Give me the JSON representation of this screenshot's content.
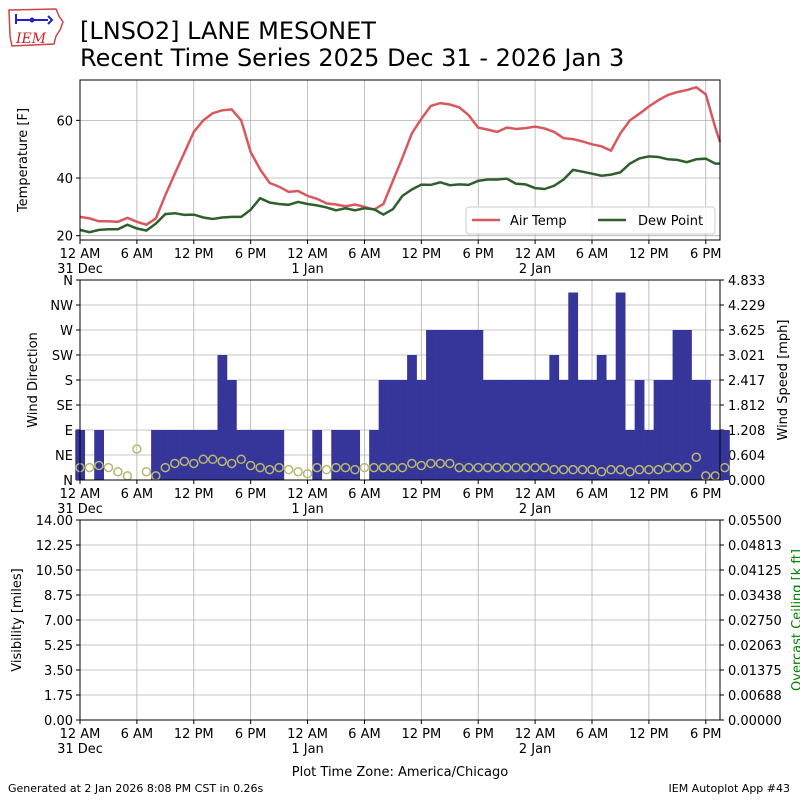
{
  "header": {
    "title_line1": "[LNSO2] LANE MESONET",
    "title_line2": "Recent Time Series 2025 Dec 31 - 2026 Jan 3",
    "logo_text": "IEM"
  },
  "footer": {
    "generated": "Generated at 2 Jan 2026 8:08 PM CST in 0.26s",
    "app": "IEM Autoplot App #43"
  },
  "colors": {
    "air_temp": "#d9585e",
    "dew_point": "#2f5f2f",
    "wind_bar": "#35359a",
    "speed_marker": "#b8b870",
    "ceiling_axis": "#008000"
  },
  "chart_data": [
    {
      "type": "line",
      "ylabel": "Temperature [F]",
      "ylim": [
        18.5,
        74
      ],
      "yticks": [
        20,
        40,
        60
      ],
      "xlim_hours": [
        0,
        67.5
      ],
      "grid": true,
      "legend": "lower right",
      "series": [
        {
          "name": "Air Temp",
          "x_hours": [
            0,
            1,
            2,
            3,
            4,
            5,
            6,
            7,
            8,
            9,
            10,
            11,
            12,
            13,
            14,
            15,
            16,
            17,
            18,
            19,
            20,
            21,
            22,
            23,
            24,
            25,
            26,
            27,
            28,
            29,
            30,
            31,
            32,
            33,
            34,
            35,
            36,
            37,
            38,
            39,
            40,
            41,
            42,
            43,
            44,
            45,
            46,
            47,
            48,
            49,
            50,
            51,
            52,
            53,
            54,
            55,
            56,
            57,
            58,
            59,
            60,
            61,
            62,
            63,
            64,
            65,
            66,
            67,
            67.5
          ],
          "values": [
            26.5,
            26,
            25,
            25,
            24.8,
            26.2,
            24.8,
            23.8,
            26,
            34,
            41.5,
            48.7,
            56,
            60,
            62.5,
            63.5,
            63.8,
            60,
            49,
            43,
            38.3,
            37,
            35.2,
            35.5,
            33.8,
            32.8,
            31.2,
            30.8,
            30.2,
            30.8,
            30,
            29,
            31,
            39,
            47,
            55.5,
            60.5,
            65,
            66,
            65.5,
            64.5,
            61.8,
            57.5,
            56.8,
            56,
            57.5,
            57,
            57.3,
            57.8,
            57.2,
            56,
            53.8,
            53.5,
            52.7,
            51.7,
            51,
            49.5,
            55.5,
            60,
            62.3,
            64.8,
            67,
            68.8,
            69.8,
            70.5,
            71.5,
            69,
            57.5,
            52.5
          ]
        },
        {
          "name": "Dew Point",
          "x_hours": [
            0,
            1,
            2,
            3,
            4,
            5,
            6,
            7,
            8,
            9,
            10,
            11,
            12,
            13,
            14,
            15,
            16,
            17,
            18,
            19,
            20,
            21,
            22,
            23,
            24,
            25,
            26,
            27,
            28,
            29,
            30,
            31,
            32,
            33,
            34,
            35,
            36,
            37,
            38,
            39,
            40,
            41,
            42,
            43,
            44,
            45,
            46,
            47,
            48,
            49,
            50,
            51,
            52,
            53,
            54,
            55,
            56,
            57,
            58,
            59,
            60,
            61,
            62,
            63,
            64,
            65,
            66,
            67,
            67.5
          ],
          "values": [
            22,
            21.2,
            22,
            22.2,
            22.2,
            23.8,
            22.5,
            21.8,
            24.2,
            27.5,
            27.8,
            27.2,
            27.3,
            26.3,
            25.8,
            26.3,
            26.5,
            26.5,
            29,
            33,
            31.5,
            31,
            30.7,
            31.7,
            31,
            30.5,
            29.8,
            28.8,
            29.5,
            28.8,
            29.5,
            29.2,
            27.3,
            29.2,
            33.8,
            36,
            37.7,
            37.6,
            38.5,
            37.5,
            37.8,
            37.6,
            39,
            39.5,
            39.5,
            39.8,
            38,
            37.8,
            36.5,
            36.2,
            37.3,
            39.5,
            42.8,
            42.2,
            41.5,
            40.8,
            41.2,
            42,
            45,
            46.8,
            47.5,
            47.3,
            46.5,
            46.3,
            45.5,
            46.5,
            46.7,
            45,
            45
          ]
        }
      ]
    },
    {
      "type": "bar",
      "ylabel": "Wind Direction",
      "y2label": "Wind Speed [mph]",
      "direction_ticks": [
        "N",
        "NE",
        "E",
        "SE",
        "S",
        "SW",
        "W",
        "NW",
        "N"
      ],
      "speed_ticks": [
        "0.000",
        "0.604",
        "1.208",
        "1.812",
        "2.417",
        "3.021",
        "3.625",
        "4.229",
        "4.833"
      ],
      "speed_max": 4.833,
      "xlim_hours": [
        0,
        67.5
      ],
      "grid": true,
      "direction_deg_hourly": [
        90,
        0,
        90,
        0,
        0,
        0,
        0,
        0,
        90,
        90,
        90,
        90,
        90,
        90,
        90,
        225,
        180,
        90,
        90,
        90,
        90,
        90,
        0,
        0,
        0,
        90,
        0,
        90,
        90,
        90,
        0,
        90,
        180,
        180,
        180,
        225,
        180,
        270,
        270,
        270,
        270,
        270,
        270,
        180,
        180,
        180,
        180,
        180,
        180,
        180,
        225,
        180,
        337.5,
        180,
        180,
        225,
        180,
        337.5,
        90,
        180,
        90,
        180,
        180,
        270,
        270,
        180,
        180,
        90,
        90
      ],
      "speed_mph_hourly": [
        0.3,
        0.3,
        0.35,
        0.3,
        0.2,
        0.1,
        0.75,
        0.2,
        0.1,
        0.3,
        0.4,
        0.45,
        0.4,
        0.5,
        0.5,
        0.45,
        0.4,
        0.5,
        0.35,
        0.3,
        0.25,
        0.3,
        0.25,
        0.2,
        0.15,
        0.3,
        0.25,
        0.3,
        0.3,
        0.25,
        0.3,
        0.3,
        0.3,
        0.3,
        0.3,
        0.4,
        0.35,
        0.4,
        0.4,
        0.4,
        0.3,
        0.3,
        0.3,
        0.3,
        0.3,
        0.3,
        0.3,
        0.3,
        0.3,
        0.3,
        0.25,
        0.25,
        0.25,
        0.25,
        0.25,
        0.2,
        0.25,
        0.25,
        0.2,
        0.25,
        0.25,
        0.25,
        0.3,
        0.3,
        0.3,
        0.55,
        0.1,
        0.1,
        0.3
      ]
    },
    {
      "type": "line",
      "ylabel": "Visibility [miles]",
      "y2label": "Overcast Ceiling [k ft]",
      "vis_ticks": [
        "0.00",
        "1.75",
        "3.50",
        "5.25",
        "7.00",
        "8.75",
        "10.50",
        "12.25",
        "14.00"
      ],
      "ceiling_ticks": [
        "0.00000",
        "0.00688",
        "0.01375",
        "0.02063",
        "0.02750",
        "0.03438",
        "0.04125",
        "0.04813",
        "0.05500"
      ],
      "xlim_hours": [
        0,
        67.5
      ],
      "grid": true,
      "series": []
    }
  ],
  "x_axis": {
    "tick_labels": [
      "12 AM",
      "6 AM",
      "12 PM",
      "6 PM",
      "12 AM",
      "6 AM",
      "12 PM",
      "6 PM",
      "12 AM",
      "6 AM",
      "12 PM",
      "6 PM"
    ],
    "date_labels": [
      {
        "at_tick": 0,
        "label": "31 Dec"
      },
      {
        "at_tick": 4,
        "label": "1 Jan"
      },
      {
        "at_tick": 8,
        "label": "2 Jan"
      }
    ],
    "xlabel": "Plot Time Zone: America/Chicago"
  }
}
